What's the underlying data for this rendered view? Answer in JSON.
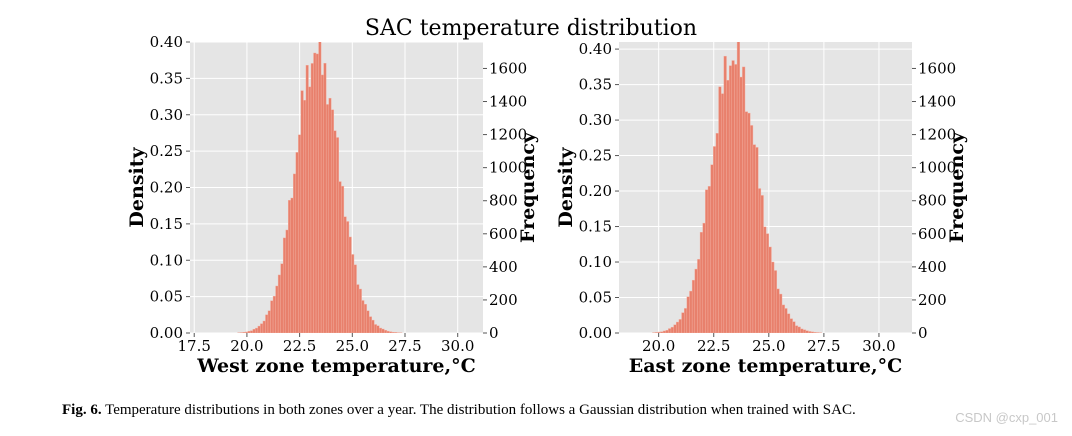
{
  "figure": {
    "suptitle": "SAC temperature distribution",
    "caption_label": "Fig. 6.",
    "caption_text": "Temperature distributions in both zones over a year. The distribution follows a Gaussian distribution when trained with SAC.",
    "watermark": "CSDN @cxp_001"
  },
  "colors": {
    "bar": "#e8806c",
    "bar_edge": "#f3b0a2",
    "plot_bg": "#e5e5e5",
    "grid": "#ffffff",
    "tick": "#555555"
  },
  "chart_data": [
    {
      "type": "bar",
      "title": "",
      "xlabel": "West zone temperature,°C",
      "ylabel": "Density",
      "ylabel_right": "Frequency",
      "xlim": [
        17.3,
        31.2
      ],
      "ylim": [
        0,
        0.4
      ],
      "ylim_right": [
        0,
        1760
      ],
      "xticks": [
        17.5,
        20.0,
        22.5,
        25.0,
        27.5,
        30.0
      ],
      "xtick_labels": [
        "17.5",
        "20.0",
        "22.5",
        "25.0",
        "27.5",
        "30.0"
      ],
      "yticks": [
        0.0,
        0.05,
        0.1,
        0.15,
        0.2,
        0.25,
        0.3,
        0.35,
        0.4
      ],
      "ytick_labels": [
        "0.00",
        "0.05",
        "0.10",
        "0.15",
        "0.20",
        "0.25",
        "0.30",
        "0.35",
        "0.40"
      ],
      "yticks_right": [
        0,
        200,
        400,
        600,
        800,
        1000,
        1200,
        1400,
        1600
      ],
      "ytick_labels_right": [
        "0",
        "200",
        "400",
        "600",
        "800",
        "1000",
        "1200",
        "1400",
        "1600"
      ],
      "grid": true,
      "bins": {
        "mean": 23.3,
        "sd": 1.0,
        "peak_density": 0.385,
        "start": 18.0,
        "end": 30.0,
        "width": 0.12
      }
    },
    {
      "type": "bar",
      "title": "",
      "xlabel": "East zone temperature,°C",
      "ylabel": "Density",
      "ylabel_right": "Frequency",
      "xlim": [
        18.2,
        31.5
      ],
      "ylim": [
        0,
        0.41
      ],
      "ylim_right": [
        0,
        1760
      ],
      "xticks": [
        20.0,
        22.5,
        25.0,
        27.5,
        30.0
      ],
      "xtick_labels": [
        "20.0",
        "22.5",
        "25.0",
        "27.5",
        "30.0"
      ],
      "yticks": [
        0.0,
        0.05,
        0.1,
        0.15,
        0.2,
        0.25,
        0.3,
        0.35,
        0.4
      ],
      "ytick_labels": [
        "0.00",
        "0.05",
        "0.10",
        "0.15",
        "0.20",
        "0.25",
        "0.30",
        "0.35",
        "0.40"
      ],
      "yticks_right": [
        0,
        200,
        400,
        600,
        800,
        1000,
        1200,
        1400,
        1600
      ],
      "ytick_labels_right": [
        "0",
        "200",
        "400",
        "600",
        "800",
        "1000",
        "1200",
        "1400",
        "1600"
      ],
      "grid": true,
      "bins": {
        "mean": 23.4,
        "sd": 1.0,
        "peak_density": 0.39,
        "start": 19.0,
        "end": 30.0,
        "width": 0.12
      }
    }
  ]
}
